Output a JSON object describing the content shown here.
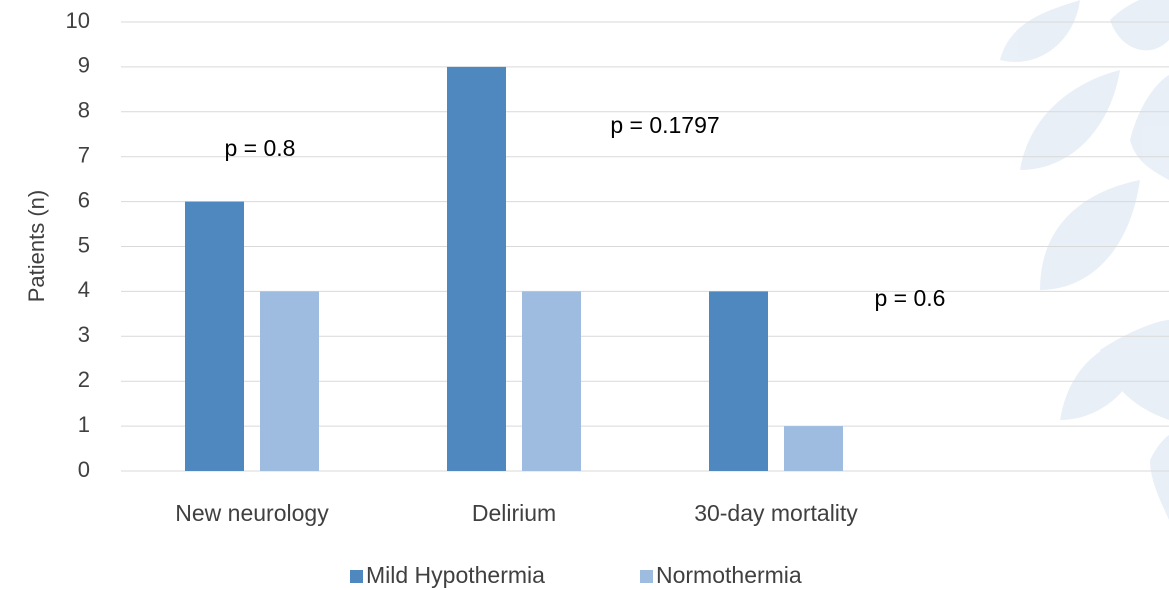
{
  "chart_data": {
    "type": "bar",
    "categories": [
      "New neurology",
      "Delirium",
      "30-day mortality",
      null
    ],
    "series": [
      {
        "name": "Mild Hypothermia",
        "color": "#4f88bf",
        "values": [
          6,
          9,
          4,
          null
        ]
      },
      {
        "name": "Normothermia",
        "color": "#9dbce0",
        "values": [
          4,
          4,
          1,
          null
        ]
      }
    ],
    "y_label": "Patients (n)",
    "ylim": [
      0,
      10
    ],
    "yticks": [
      0,
      1,
      2,
      3,
      4,
      5,
      6,
      7,
      8,
      9,
      10
    ],
    "grid": true,
    "annotations": [
      "p = 0.8",
      "p = 0.1797",
      "p = 0.6"
    ],
    "legend": "bottom"
  }
}
